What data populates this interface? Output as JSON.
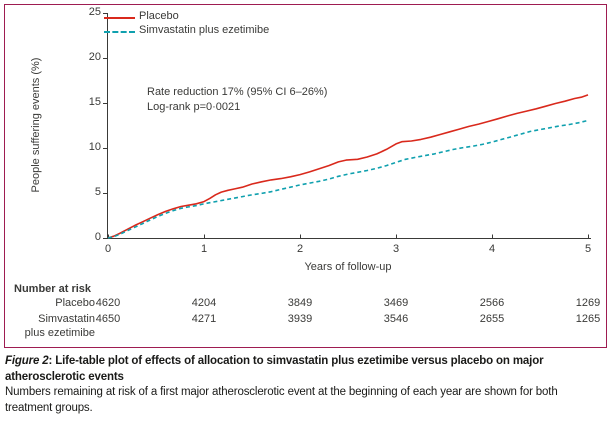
{
  "colors": {
    "ink": "#3a3a38",
    "frame": "#9e1c51",
    "placebo_red": "#d9291c",
    "ezetimibe_teal": "#0fa0ae",
    "caption_ink": "#1a1a18"
  },
  "chart_data": {
    "type": "line",
    "title": "",
    "xlabel": "Years of follow-up",
    "ylabel": "People suffering events (%)",
    "xlim": [
      0,
      5
    ],
    "ylim": [
      0,
      25
    ],
    "x_ticks": [
      0,
      1,
      2,
      3,
      4,
      5
    ],
    "y_ticks": [
      0,
      5,
      10,
      15,
      20,
      25
    ],
    "grid": false,
    "legend_position": "top-left",
    "axis_color": "#3a3a38",
    "annotation": [
      "Rate reduction 17% (95% CI 6–26%)",
      "Log-rank p=0·0021"
    ],
    "series": [
      {
        "name": "Placebo",
        "color": "#d9291c",
        "style": "solid",
        "points": [
          [
            0,
            0
          ],
          [
            0.06,
            0.2
          ],
          [
            0.12,
            0.5
          ],
          [
            0.2,
            0.95
          ],
          [
            0.28,
            1.4
          ],
          [
            0.36,
            1.8
          ],
          [
            0.44,
            2.2
          ],
          [
            0.52,
            2.6
          ],
          [
            0.6,
            2.95
          ],
          [
            0.68,
            3.25
          ],
          [
            0.76,
            3.5
          ],
          [
            0.84,
            3.65
          ],
          [
            0.92,
            3.8
          ],
          [
            1.0,
            4.05
          ],
          [
            1.06,
            4.4
          ],
          [
            1.12,
            4.8
          ],
          [
            1.18,
            5.1
          ],
          [
            1.25,
            5.3
          ],
          [
            1.32,
            5.45
          ],
          [
            1.4,
            5.65
          ],
          [
            1.5,
            6.0
          ],
          [
            1.6,
            6.25
          ],
          [
            1.7,
            6.45
          ],
          [
            1.8,
            6.6
          ],
          [
            1.9,
            6.8
          ],
          [
            2.0,
            7.05
          ],
          [
            2.1,
            7.35
          ],
          [
            2.2,
            7.7
          ],
          [
            2.3,
            8.05
          ],
          [
            2.4,
            8.45
          ],
          [
            2.48,
            8.65
          ],
          [
            2.6,
            8.75
          ],
          [
            2.7,
            9.0
          ],
          [
            2.8,
            9.35
          ],
          [
            2.9,
            9.85
          ],
          [
            3.0,
            10.45
          ],
          [
            3.06,
            10.7
          ],
          [
            3.16,
            10.78
          ],
          [
            3.26,
            10.95
          ],
          [
            3.36,
            11.2
          ],
          [
            3.46,
            11.5
          ],
          [
            3.56,
            11.8
          ],
          [
            3.66,
            12.1
          ],
          [
            3.76,
            12.4
          ],
          [
            3.86,
            12.65
          ],
          [
            3.96,
            12.95
          ],
          [
            4.06,
            13.25
          ],
          [
            4.16,
            13.55
          ],
          [
            4.26,
            13.85
          ],
          [
            4.36,
            14.1
          ],
          [
            4.46,
            14.35
          ],
          [
            4.56,
            14.65
          ],
          [
            4.66,
            14.95
          ],
          [
            4.76,
            15.2
          ],
          [
            4.86,
            15.5
          ],
          [
            4.93,
            15.65
          ],
          [
            5.0,
            15.9
          ]
        ]
      },
      {
        "name": "Simvastatin plus ezetimibe",
        "color": "#0fa0ae",
        "style": "dashed",
        "points": [
          [
            0,
            0
          ],
          [
            0.06,
            0.15
          ],
          [
            0.12,
            0.4
          ],
          [
            0.2,
            0.8
          ],
          [
            0.28,
            1.2
          ],
          [
            0.36,
            1.6
          ],
          [
            0.44,
            2.0
          ],
          [
            0.52,
            2.4
          ],
          [
            0.6,
            2.75
          ],
          [
            0.68,
            3.05
          ],
          [
            0.76,
            3.3
          ],
          [
            0.84,
            3.45
          ],
          [
            0.92,
            3.6
          ],
          [
            1.0,
            3.8
          ],
          [
            1.1,
            4.0
          ],
          [
            1.2,
            4.2
          ],
          [
            1.3,
            4.4
          ],
          [
            1.4,
            4.6
          ],
          [
            1.5,
            4.8
          ],
          [
            1.6,
            4.95
          ],
          [
            1.7,
            5.15
          ],
          [
            1.8,
            5.4
          ],
          [
            1.9,
            5.65
          ],
          [
            2.0,
            5.9
          ],
          [
            2.1,
            6.1
          ],
          [
            2.2,
            6.3
          ],
          [
            2.3,
            6.55
          ],
          [
            2.4,
            6.85
          ],
          [
            2.5,
            7.1
          ],
          [
            2.6,
            7.3
          ],
          [
            2.7,
            7.5
          ],
          [
            2.8,
            7.75
          ],
          [
            2.9,
            8.05
          ],
          [
            3.0,
            8.4
          ],
          [
            3.1,
            8.75
          ],
          [
            3.2,
            8.95
          ],
          [
            3.3,
            9.15
          ],
          [
            3.4,
            9.35
          ],
          [
            3.5,
            9.6
          ],
          [
            3.6,
            9.85
          ],
          [
            3.7,
            10.05
          ],
          [
            3.8,
            10.2
          ],
          [
            3.9,
            10.4
          ],
          [
            4.0,
            10.65
          ],
          [
            4.1,
            10.95
          ],
          [
            4.2,
            11.25
          ],
          [
            4.3,
            11.55
          ],
          [
            4.4,
            11.85
          ],
          [
            4.5,
            12.05
          ],
          [
            4.6,
            12.25
          ],
          [
            4.7,
            12.45
          ],
          [
            4.8,
            12.6
          ],
          [
            4.9,
            12.8
          ],
          [
            5.0,
            13.05
          ]
        ]
      }
    ]
  },
  "number_at_risk": {
    "heading": "Number at risk",
    "rows": [
      {
        "label_lines": [
          "Placebo"
        ],
        "values": [
          "4620",
          "4204",
          "3849",
          "3469",
          "2566",
          "1269"
        ]
      },
      {
        "label_lines": [
          "Simvastatin",
          "plus ezetimibe"
        ],
        "values": [
          "4650",
          "4271",
          "3939",
          "3546",
          "2655",
          "1265"
        ]
      }
    ]
  },
  "caption": {
    "figure_label": "Figure 2",
    "title_line1_rest": ": Life-table plot of effects of allocation to simvastatin plus ezetimibe versus placebo on major",
    "title_line2": "atherosclerotic events",
    "body_line1": "Numbers remaining at risk of a first major atherosclerotic event at the beginning of each year are shown for both",
    "body_line2": "treatment groups."
  }
}
